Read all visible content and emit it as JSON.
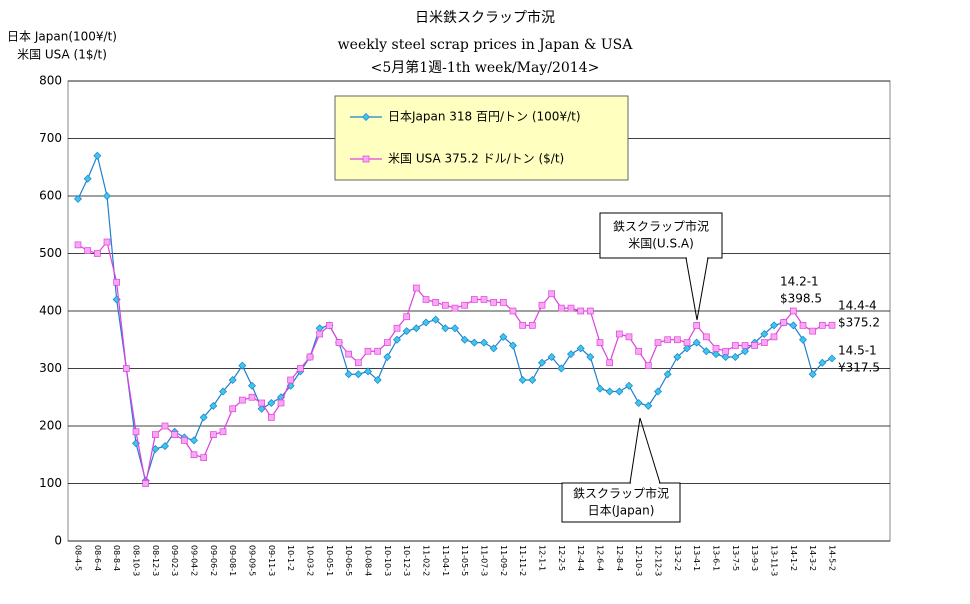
{
  "chart_data": {
    "type": "line",
    "title": [
      "日米鉄スクラップ市況",
      "weekly steel scrap prices in Japan & USA",
      "<5月第1週-1th week/May/2014>"
    ],
    "y_label": [
      "日本 Japan(100¥/t)",
      "米国 USA (1$/t)"
    ],
    "categories": [
      "08-4-5",
      null,
      "08-6-4",
      null,
      "08-8-4",
      null,
      "08-10-3",
      null,
      "08-12-3",
      null,
      "09-02-3",
      null,
      "09-04-2",
      null,
      "09-06-2",
      null,
      "09-08-1",
      null,
      "09-09-5",
      null,
      "09-11-3",
      null,
      "10-1-2",
      null,
      "10-03-2",
      null,
      "10-05-1",
      null,
      "10-06-5",
      null,
      "10-08-4",
      null,
      "10-10-3",
      null,
      "10-12-3",
      null,
      "11-02-2",
      null,
      "11-04-1",
      null,
      "11-05-5",
      null,
      "11-07-3",
      null,
      "11-09-2",
      null,
      "11-11-2",
      null,
      "12-1-1",
      null,
      "12-2-5",
      null,
      "12-4-4",
      null,
      "12-6-4",
      null,
      "12-8-4",
      null,
      "12-10-3",
      null,
      "12-12-3",
      null,
      "13-2-2",
      null,
      "13-4-1",
      null,
      "13-6-1",
      null,
      "13-7-5",
      null,
      "13-9-3",
      null,
      "13-11-3",
      null,
      "14-1-2",
      null,
      "14-3-2",
      null,
      "14-5-2"
    ],
    "series": [
      {
        "name": "日本Japan 318 百円/トン (100¥/t)",
        "color": "#1f7fd0",
        "marker": "diamond",
        "marker_color": "#3cc8e8",
        "values": [
          595,
          630,
          670,
          600,
          420,
          300,
          170,
          105,
          160,
          165,
          190,
          180,
          175,
          215,
          235,
          260,
          280,
          305,
          270,
          230,
          240,
          250,
          270,
          295,
          320,
          370,
          375,
          345,
          290,
          290,
          295,
          280,
          320,
          350,
          365,
          370,
          380,
          385,
          370,
          370,
          350,
          345,
          345,
          335,
          355,
          340,
          280,
          280,
          310,
          320,
          300,
          325,
          335,
          320,
          265,
          260,
          260,
          270,
          240,
          235,
          260,
          290,
          320,
          335,
          345,
          330,
          325,
          320,
          320,
          330,
          345,
          360,
          375,
          380,
          375,
          350,
          290,
          310,
          317.5
        ]
      },
      {
        "name": "米国 USA 375.2 ドル/トン ($/t)",
        "color": "#e040e0",
        "marker": "square",
        "marker_color": "#f7a8f0",
        "values": [
          515,
          505,
          500,
          520,
          450,
          300,
          190,
          100,
          185,
          200,
          185,
          175,
          150,
          145,
          185,
          190,
          230,
          245,
          250,
          240,
          215,
          240,
          280,
          300,
          320,
          360,
          375,
          345,
          325,
          310,
          330,
          330,
          345,
          370,
          390,
          440,
          420,
          415,
          410,
          405,
          410,
          420,
          420,
          415,
          415,
          400,
          375,
          375,
          410,
          430,
          405,
          405,
          400,
          400,
          345,
          310,
          360,
          355,
          330,
          305,
          345,
          350,
          350,
          345,
          375,
          355,
          335,
          330,
          340,
          340,
          340,
          345,
          355,
          380,
          400,
          375,
          365,
          375,
          375.2
        ]
      }
    ],
    "ylim": [
      0,
      800
    ],
    "yticks": [
      0,
      100,
      200,
      300,
      400,
      500,
      600,
      700,
      800
    ],
    "grid": true,
    "annotations": [
      {
        "lines": [
          "鉄スクラップ市況",
          "米国(U.S.A)"
        ]
      },
      {
        "lines": [
          "鉄スクラップ市況",
          "日本(Japan)"
        ]
      },
      {
        "lines": [
          "14.2-1",
          "$398.5"
        ]
      },
      {
        "lines": [
          "14.4-4",
          "$375.2"
        ]
      },
      {
        "lines": [
          "14.5-1",
          "¥317.5"
        ]
      }
    ]
  }
}
